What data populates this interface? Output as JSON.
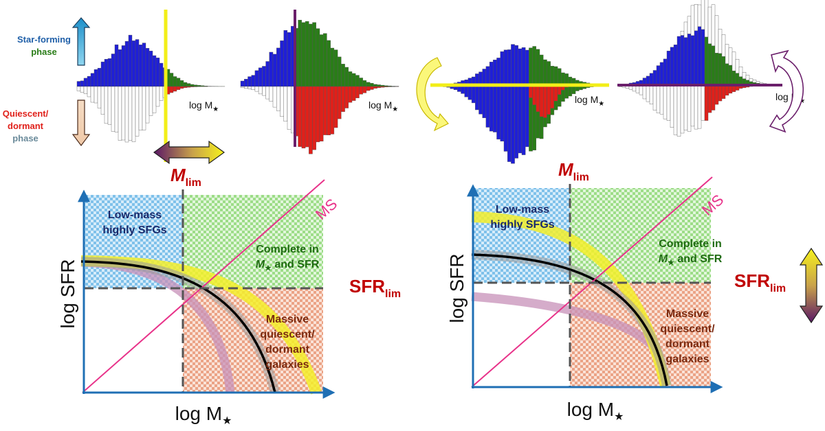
{
  "legend": {
    "sf_phase_line1": "Star-forming",
    "sf_phase_line2": "phase",
    "q_phase_line1": "Quiescent/",
    "q_phase_line2": "dormant",
    "q_phase_line3": "phase"
  },
  "hist_axis_label": "log M",
  "mass_symbol": "★",
  "mlim_label": "M",
  "mlim_sub": "lim",
  "sfrlim_label": "SFR",
  "sfrlim_sub": "lim",
  "panels": {
    "left": {
      "y_axis": "log SFR",
      "x_axis": "log M",
      "region_lowmass_1": "Low-mass",
      "region_lowmass_2": "highly SFGs",
      "region_complete_1": "Complete in",
      "region_complete_2": "and SFR",
      "region_massive_1": "Massive",
      "region_massive_2": "quiescent/",
      "region_massive_3": "dormant",
      "region_massive_4": "galaxies",
      "ms_label": "MS"
    },
    "right": {
      "y_axis": "log SFR",
      "x_axis": "log M",
      "region_lowmass_1": "Low-mass",
      "region_lowmass_2": "highly SFGs",
      "region_complete_1": "Complete in",
      "region_complete_2": "and SFR",
      "region_massive_1": "Massive",
      "region_massive_2": "quiescent/",
      "region_massive_3": "dormant",
      "region_massive_4": "galaxies",
      "ms_label": "MS"
    }
  },
  "colors": {
    "sf_blue": "#1f1fd6",
    "sf_green": "#2a7d18",
    "q_red": "#e0201a",
    "q_white": "#ffffff",
    "mlim_yellow": "#f2ee18",
    "mlim_purple": "#6b1f6b",
    "label_red": "#c00000",
    "ms_pink": "#e8338a",
    "axis_blue": "#1f6fb4",
    "region_blue": "#8cc8ee",
    "region_green": "#a6e394",
    "region_orange": "#eaa88e"
  }
}
